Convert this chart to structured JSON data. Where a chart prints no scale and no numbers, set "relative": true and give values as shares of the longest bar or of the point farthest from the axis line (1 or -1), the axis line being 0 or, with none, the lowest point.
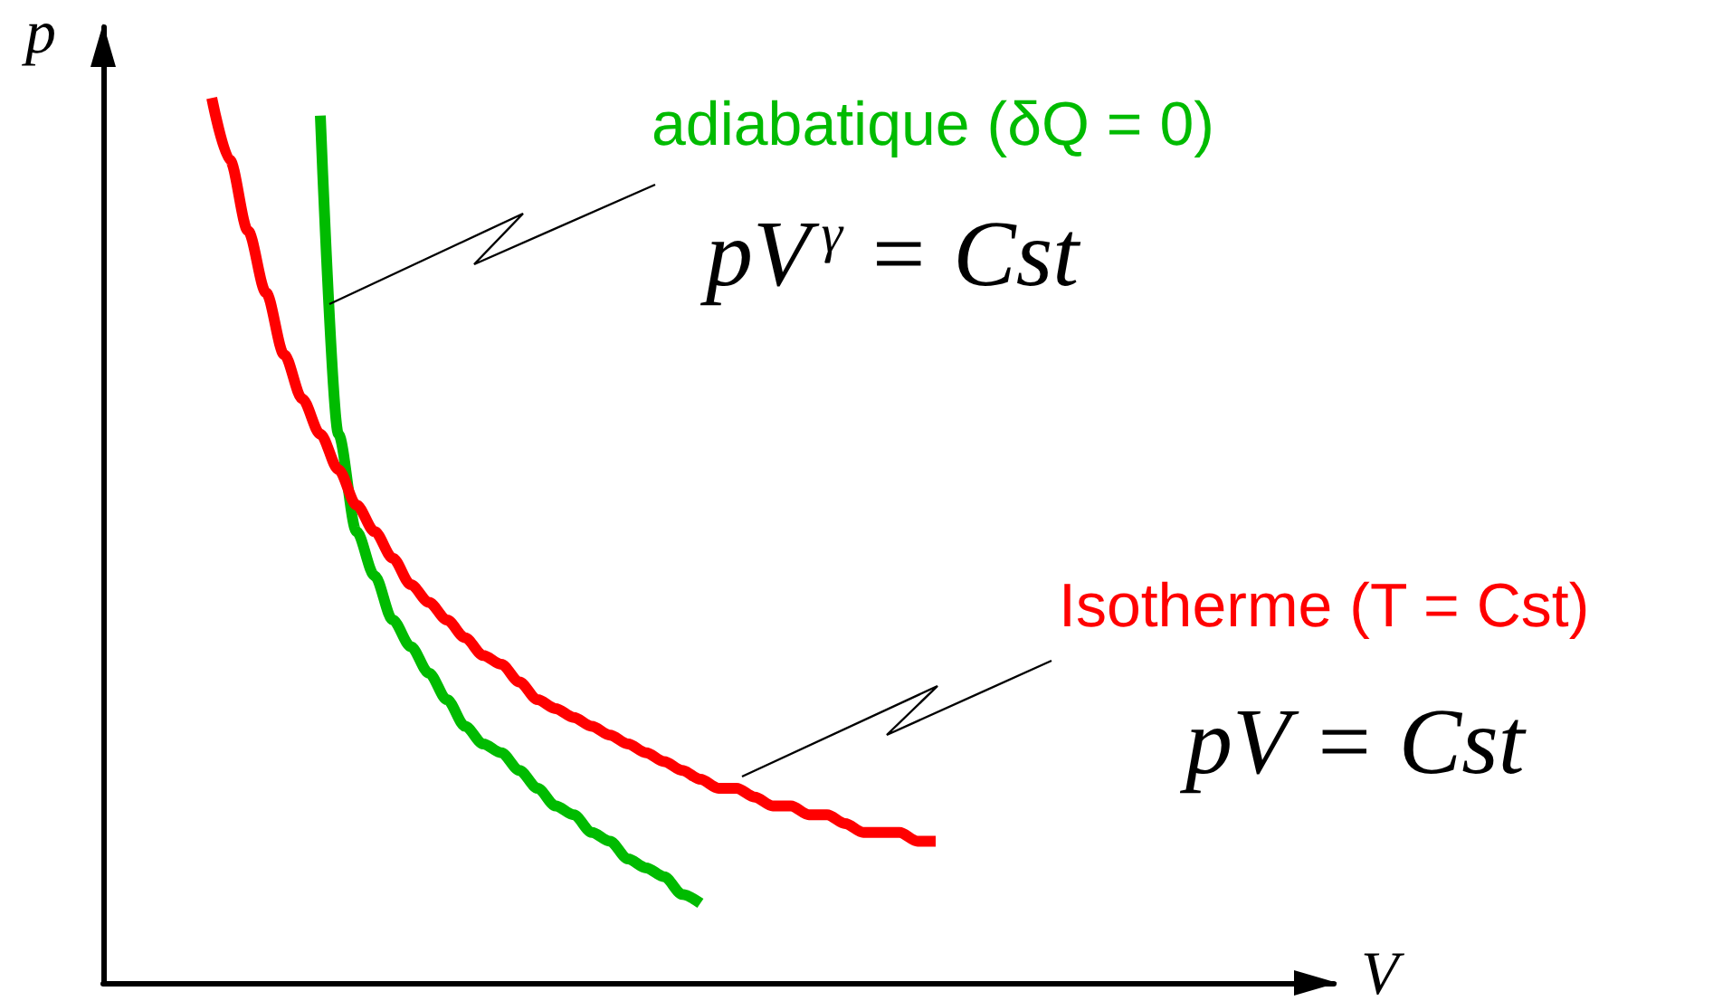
{
  "chart_data": {
    "type": "line",
    "relative": true,
    "xlabel": "V",
    "ylabel": "p",
    "marker": "none",
    "line_style": "solid",
    "categories": [
      null,
      null,
      null,
      null,
      null,
      null,
      null,
      null,
      null,
      null,
      null,
      null,
      null,
      null,
      null,
      null,
      null,
      null,
      null,
      null,
      null,
      null,
      null,
      null,
      null,
      null,
      null,
      null,
      null,
      null,
      null,
      null,
      null,
      null,
      null,
      null,
      null,
      null,
      null,
      null,
      null,
      null,
      null,
      null,
      null,
      null,
      null,
      null,
      null,
      null,
      null,
      null,
      null,
      null,
      null,
      null,
      null,
      null,
      null,
      null,
      null,
      null,
      null,
      null,
      null,
      null,
      null,
      null,
      null
    ],
    "series": [
      {
        "name": "adiabatique (δQ = 0)",
        "color": "#00bb00",
        "values": [
          null,
          null,
          null,
          null,
          null,
          null,
          null,
          null,
          null,
          null,
          null,
          null,
          0.98,
          0.62,
          0.51,
          0.46,
          0.41,
          0.38,
          0.35,
          0.32,
          0.29,
          0.27,
          0.26,
          0.24,
          0.22,
          0.2,
          0.19,
          0.17,
          0.16,
          0.14,
          0.13,
          0.12,
          0.1,
          0.09,
          null,
          null,
          null,
          null,
          null,
          null,
          null,
          null,
          null,
          null,
          null,
          null,
          null,
          null,
          null,
          null,
          null,
          null,
          null,
          null,
          null,
          null,
          null,
          null,
          null,
          null,
          null,
          null,
          null,
          null,
          null,
          null,
          null,
          null,
          null
        ]
      },
      {
        "name": "Isotherme (T = Cst)",
        "color": "#ff0000",
        "values": [
          null,
          null,
          null,
          null,
          null,
          null,
          1.0,
          0.93,
          0.85,
          0.78,
          0.71,
          0.66,
          0.62,
          0.58,
          0.54,
          0.51,
          0.48,
          0.45,
          0.43,
          0.41,
          0.39,
          0.37,
          0.36,
          0.34,
          0.32,
          0.31,
          0.3,
          0.29,
          0.28,
          0.27,
          0.26,
          0.25,
          0.24,
          0.23,
          0.22,
          0.22,
          0.21,
          0.2,
          0.2,
          0.19,
          0.19,
          0.18,
          0.17,
          0.17,
          0.17,
          0.16,
          0.16,
          null,
          null,
          null,
          null,
          null,
          null,
          null,
          null,
          null,
          null,
          null,
          null,
          null,
          null,
          null,
          null,
          null,
          null,
          null,
          null,
          null,
          null
        ]
      }
    ],
    "annotations": [
      "pV$^{γ}$ = Cst",
      "pV = Cst"
    ]
  }
}
